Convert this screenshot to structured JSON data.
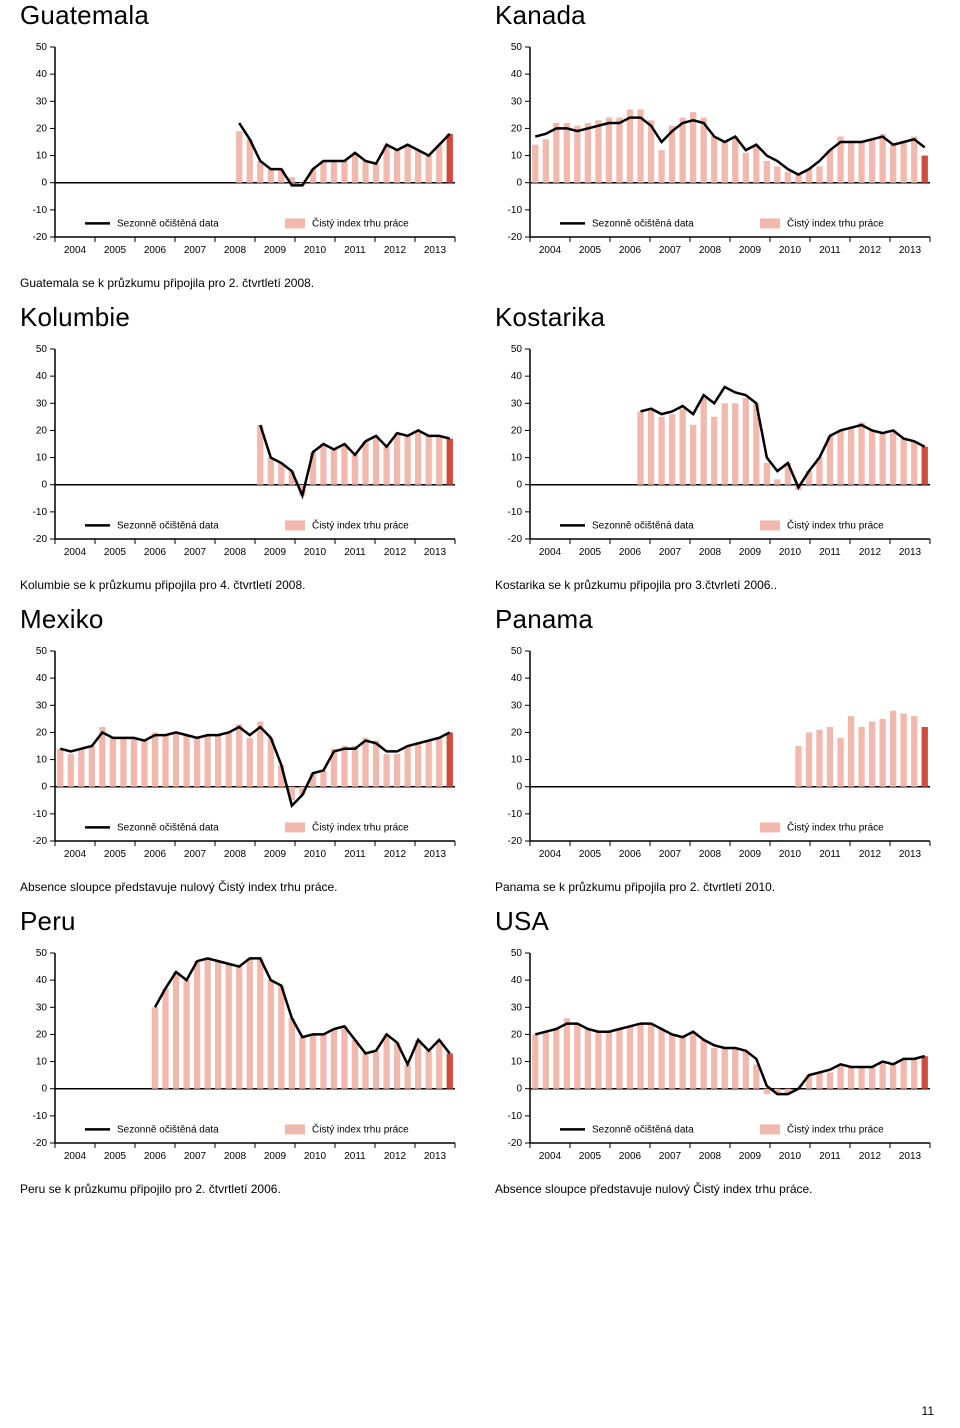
{
  "page_number": "11",
  "colors": {
    "bar_fill": "#f1b9ad",
    "bar_accent": "#d14b3a",
    "line": "#000000",
    "axis": "#000000",
    "bg": "#ffffff"
  },
  "axis": {
    "y_ticks": [
      -20,
      -10,
      0,
      10,
      20,
      30,
      40,
      50
    ],
    "x_labels": [
      "2004",
      "2005",
      "2006",
      "2007",
      "2008",
      "2009",
      "2010",
      "2011",
      "2012",
      "2013"
    ],
    "tick_fontsize": 10
  },
  "legend": {
    "seasonal": "Sezonně očištěná data",
    "index": "Čistý index trhu práce",
    "fontsize": 10
  },
  "charts": [
    {
      "id": "guatemala",
      "title": "Guatemala",
      "caption": "Guatemala se k průzkumu připojila pro 2. čtvrtletí 2008.",
      "show_seasonal_legend": true,
      "bars": [
        null,
        null,
        null,
        null,
        null,
        null,
        null,
        null,
        null,
        null,
        null,
        null,
        null,
        null,
        null,
        null,
        null,
        19,
        16,
        8,
        5,
        5,
        2,
        -1,
        5,
        8,
        8,
        8,
        11,
        8,
        7,
        14,
        12,
        14,
        12,
        10,
        14,
        18
      ],
      "line": [
        null,
        null,
        null,
        null,
        null,
        null,
        null,
        null,
        null,
        null,
        null,
        null,
        null,
        null,
        null,
        null,
        null,
        22,
        16,
        8,
        5,
        5,
        -1,
        -1,
        5,
        8,
        8,
        8,
        11,
        8,
        7,
        14,
        12,
        14,
        12,
        10,
        14,
        18
      ],
      "accent_index": 37
    },
    {
      "id": "kanada",
      "title": "Kanada",
      "caption": "",
      "show_seasonal_legend": true,
      "bars": [
        14,
        16,
        22,
        22,
        21,
        22,
        23,
        24,
        24,
        27,
        27,
        23,
        12,
        21,
        24,
        26,
        24,
        17,
        15,
        17,
        11,
        14,
        8,
        6,
        4,
        3,
        5,
        6,
        12,
        17,
        15,
        15,
        16,
        18,
        14,
        15,
        17,
        10
      ],
      "line": [
        17,
        18,
        20,
        20,
        19,
        20,
        21,
        22,
        22,
        24,
        24,
        21,
        15,
        19,
        22,
        23,
        22,
        17,
        15,
        17,
        12,
        14,
        10,
        8,
        5,
        3,
        5,
        8,
        12,
        15,
        15,
        15,
        16,
        17,
        14,
        15,
        16,
        13
      ],
      "accent_index": 37
    },
    {
      "id": "kolumbie",
      "title": "Kolumbie",
      "caption": "Kolumbie se k průzkumu připojila pro 4. čtvrtletí 2008.",
      "show_seasonal_legend": true,
      "bars": [
        null,
        null,
        null,
        null,
        null,
        null,
        null,
        null,
        null,
        null,
        null,
        null,
        null,
        null,
        null,
        null,
        null,
        null,
        null,
        22,
        10,
        8,
        5,
        -4,
        12,
        15,
        13,
        15,
        11,
        16,
        18,
        14,
        19,
        18,
        20,
        18,
        18,
        17
      ],
      "line": [
        null,
        null,
        null,
        null,
        null,
        null,
        null,
        null,
        null,
        null,
        null,
        null,
        null,
        null,
        null,
        null,
        null,
        null,
        null,
        22,
        10,
        8,
        5,
        -4,
        12,
        15,
        13,
        15,
        11,
        16,
        18,
        14,
        19,
        18,
        20,
        18,
        18,
        17
      ],
      "accent_index": 37
    },
    {
      "id": "kostarika",
      "title": "Kostarika",
      "caption": "Kostarika se k průzkumu připojila pro 3.čtvrletí 2006..",
      "show_seasonal_legend": true,
      "bars": [
        null,
        null,
        null,
        null,
        null,
        null,
        null,
        null,
        null,
        null,
        27,
        28,
        25,
        26,
        28,
        22,
        32,
        25,
        30,
        30,
        32,
        30,
        8,
        2,
        8,
        -2,
        5,
        10,
        18,
        20,
        21,
        23,
        20,
        19,
        20,
        17,
        16,
        14
      ],
      "line": [
        null,
        null,
        null,
        null,
        null,
        null,
        null,
        null,
        null,
        null,
        27,
        28,
        26,
        27,
        29,
        26,
        33,
        30,
        36,
        34,
        33,
        30,
        10,
        5,
        8,
        -1,
        5,
        10,
        18,
        20,
        21,
        22,
        20,
        19,
        20,
        17,
        16,
        14
      ],
      "accent_index": 37
    },
    {
      "id": "mexiko",
      "title": "Mexiko",
      "caption": "Absence sloupce představuje nulový Čistý index trhu práce.",
      "show_seasonal_legend": true,
      "bars": [
        14,
        12,
        14,
        15,
        22,
        18,
        18,
        18,
        17,
        20,
        19,
        20,
        19,
        18,
        19,
        19,
        20,
        23,
        18,
        24,
        18,
        8,
        -5,
        -3,
        5,
        6,
        14,
        15,
        15,
        18,
        17,
        12,
        12,
        15,
        16,
        17,
        18,
        20
      ],
      "line": [
        14,
        13,
        14,
        15,
        20,
        18,
        18,
        18,
        17,
        19,
        19,
        20,
        19,
        18,
        19,
        19,
        20,
        22,
        19,
        22,
        18,
        8,
        -7,
        -3,
        5,
        6,
        13,
        14,
        14,
        17,
        16,
        13,
        13,
        15,
        16,
        17,
        18,
        20
      ],
      "accent_index": 37
    },
    {
      "id": "panama",
      "title": "Panama",
      "caption": "Panama se k průzkumu připojila pro 2. čtvrtletí 2010.",
      "show_seasonal_legend": false,
      "bars": [
        null,
        null,
        null,
        null,
        null,
        null,
        null,
        null,
        null,
        null,
        null,
        null,
        null,
        null,
        null,
        null,
        null,
        null,
        null,
        null,
        null,
        null,
        null,
        null,
        null,
        15,
        20,
        21,
        22,
        18,
        26,
        22,
        24,
        25,
        28,
        27,
        26,
        22
      ],
      "line": null,
      "accent_index": 37
    },
    {
      "id": "peru",
      "title": "Peru",
      "caption": "Peru se k průzkumu připojilo pro 2. čtvrtletí 2006.",
      "show_seasonal_legend": true,
      "bars": [
        null,
        null,
        null,
        null,
        null,
        null,
        null,
        null,
        null,
        30,
        37,
        43,
        40,
        47,
        48,
        47,
        46,
        45,
        48,
        48,
        40,
        38,
        26,
        19,
        20,
        20,
        22,
        23,
        18,
        13,
        14,
        20,
        17,
        9,
        18,
        14,
        18,
        13
      ],
      "line": [
        null,
        null,
        null,
        null,
        null,
        null,
        null,
        null,
        null,
        30,
        37,
        43,
        40,
        47,
        48,
        47,
        46,
        45,
        48,
        48,
        40,
        38,
        26,
        19,
        20,
        20,
        22,
        23,
        18,
        13,
        14,
        20,
        17,
        9,
        18,
        14,
        18,
        13
      ],
      "accent_index": 37
    },
    {
      "id": "usa",
      "title": "USA",
      "caption": "Absence sloupce představuje nulový Čistý index trhu práce.",
      "show_seasonal_legend": true,
      "bars": [
        20,
        21,
        22,
        26,
        24,
        22,
        21,
        21,
        22,
        23,
        24,
        24,
        22,
        20,
        19,
        21,
        18,
        15,
        15,
        15,
        14,
        9,
        -2,
        -2,
        -2,
        0,
        5,
        6,
        6,
        9,
        8,
        8,
        8,
        10,
        9,
        11,
        11,
        12
      ],
      "line": [
        20,
        21,
        22,
        24,
        24,
        22,
        21,
        21,
        22,
        23,
        24,
        24,
        22,
        20,
        19,
        21,
        18,
        16,
        15,
        15,
        14,
        11,
        1,
        -2,
        -2,
        0,
        5,
        6,
        7,
        9,
        8,
        8,
        8,
        10,
        9,
        11,
        11,
        12
      ],
      "accent_index": 37
    }
  ]
}
